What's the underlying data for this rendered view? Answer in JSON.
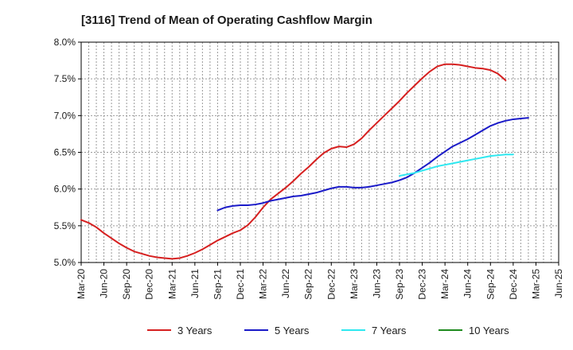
{
  "chart_data": {
    "type": "line",
    "title": "[3116]  Trend of Mean of Operating Cashflow Margin",
    "xlabel": "",
    "ylabel": "",
    "ylim": [
      5.0,
      8.0
    ],
    "yticks": [
      5.0,
      5.5,
      6.0,
      6.5,
      7.0,
      7.5,
      8.0
    ],
    "ytick_labels": [
      "5.0%",
      "5.5%",
      "6.0%",
      "6.5%",
      "7.0%",
      "7.5%",
      "8.0%"
    ],
    "x_categories": [
      "Mar-20",
      "Jun-20",
      "Sep-20",
      "Dec-20",
      "Mar-21",
      "Jun-21",
      "Sep-21",
      "Dec-21",
      "Mar-22",
      "Jun-22",
      "Sep-22",
      "Dec-22",
      "Mar-23",
      "Jun-23",
      "Sep-23",
      "Dec-23",
      "Mar-24",
      "Jun-24",
      "Sep-24",
      "Dec-24",
      "Mar-25",
      "Jun-25"
    ],
    "grid": true,
    "legend_position": "bottom",
    "series": [
      {
        "name": "3 Years",
        "color": "#d62020",
        "start_index": 0,
        "values": [
          5.58,
          5.54,
          5.48,
          5.4,
          5.33,
          5.26,
          5.2,
          5.15,
          5.12,
          5.09,
          5.07,
          5.06,
          5.05,
          5.06,
          5.09,
          5.13,
          5.18,
          5.24,
          5.3,
          5.35,
          5.4,
          5.44,
          5.51,
          5.62,
          5.75,
          5.86,
          5.94,
          6.02,
          6.11,
          6.21,
          6.3,
          6.4,
          6.49,
          6.55,
          6.58,
          6.57,
          6.61,
          6.69,
          6.8,
          6.9,
          7.0,
          7.1,
          7.2,
          7.31,
          7.41,
          7.51,
          7.6,
          7.67,
          7.7,
          7.7,
          7.69,
          7.67,
          7.65,
          7.64,
          7.62,
          7.57,
          7.48
        ]
      },
      {
        "name": "5 Years",
        "color": "#1a1ac8",
        "start_index": 18,
        "values": [
          5.71,
          5.75,
          5.77,
          5.78,
          5.78,
          5.79,
          5.81,
          5.84,
          5.86,
          5.88,
          5.9,
          5.91,
          5.93,
          5.95,
          5.98,
          6.01,
          6.03,
          6.03,
          6.02,
          6.02,
          6.03,
          6.05,
          6.07,
          6.09,
          6.12,
          6.16,
          6.22,
          6.29,
          6.36,
          6.44,
          6.51,
          6.58,
          6.63,
          6.68,
          6.74,
          6.8,
          6.86,
          6.9,
          6.93,
          6.95,
          6.96,
          6.97
        ]
      },
      {
        "name": "7 Years",
        "color": "#2ee8f0",
        "start_index": 42,
        "values": [
          6.18,
          6.2,
          6.22,
          6.25,
          6.28,
          6.31,
          6.33,
          6.35,
          6.37,
          6.39,
          6.41,
          6.43,
          6.45,
          6.46,
          6.47,
          6.47
        ]
      },
      {
        "name": "10 Years",
        "color": "#1e8a1e",
        "start_index": 0,
        "values": []
      }
    ]
  }
}
